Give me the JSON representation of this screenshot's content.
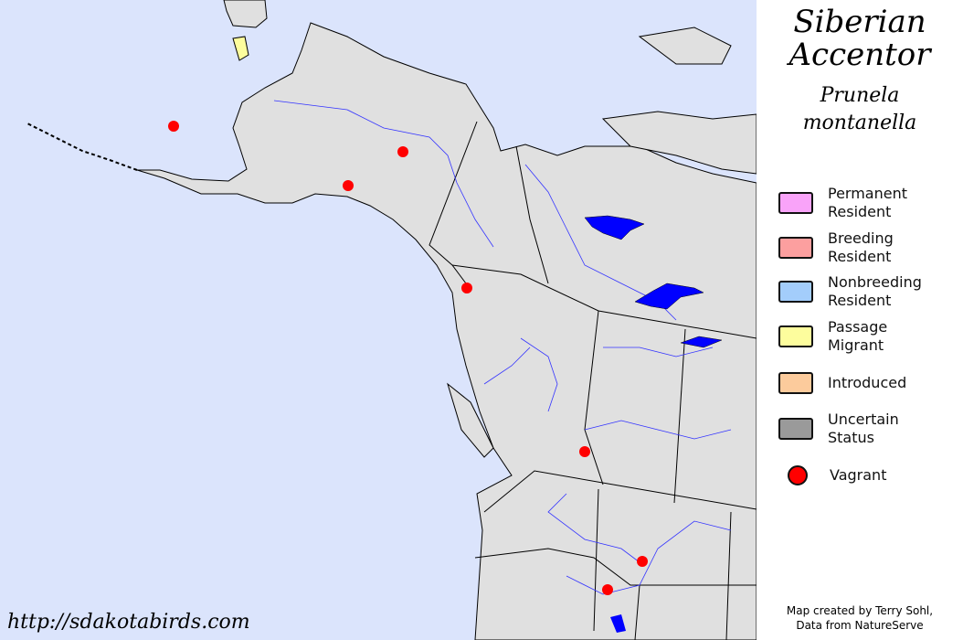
{
  "title": {
    "common_name": "Siberian\nAccentor",
    "line1": "Siberian",
    "line2": "Accentor",
    "sci_line1": "Prunela",
    "sci_line2": "montanella"
  },
  "legend": [
    {
      "label": "Permanent\nResident",
      "color": "#f9a3f9"
    },
    {
      "label": "Breeding\nResident",
      "color": "#fc9f9f"
    },
    {
      "label": "Nonbreeding\nResident",
      "color": "#a3cdfb"
    },
    {
      "label": "Passage\nMigrant",
      "color": "#fdfd9d"
    },
    {
      "label": "Introduced",
      "color": "#fccb9c"
    },
    {
      "label": "Uncertain\nStatus",
      "color": "#9a9a9a"
    },
    {
      "label": "Vagrant",
      "color": "#ff0000"
    }
  ],
  "credit": "Map created by Terry Sohl,\nData from NatureServe",
  "url": "http://sdakotabirds.com",
  "colors": {
    "ocean": "#dbe4fc",
    "land": "#e0e0e0",
    "water": "#0000ff",
    "vagrant": "#ff0000"
  }
}
